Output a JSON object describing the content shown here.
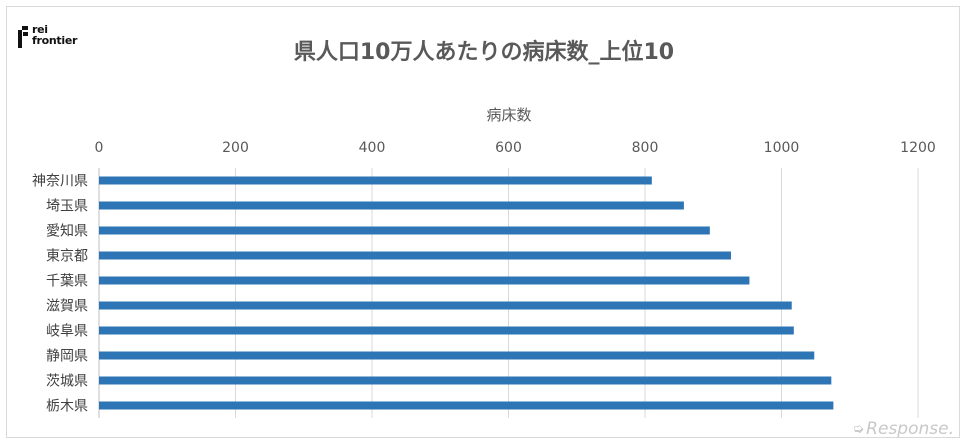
{
  "logo": {
    "line1": "rei",
    "line2": "frontier"
  },
  "watermark": "Response.",
  "chart_data": {
    "type": "bar",
    "orientation": "horizontal",
    "title": "県人口10万人あたりの病床数_上位10",
    "xlabel": "病床数",
    "ylabel": "",
    "xlim": [
      0,
      1200
    ],
    "xticks": [
      0,
      200,
      400,
      600,
      800,
      1000,
      1200
    ],
    "x_axis_position": "top",
    "grid": "vertical",
    "categories": [
      "神奈川県",
      "埼玉県",
      "愛知県",
      "東京都",
      "千葉県",
      "滋賀県",
      "岐阜県",
      "静岡県",
      "茨城県",
      "栃木県"
    ],
    "values": [
      810,
      857,
      895,
      926,
      953,
      1015,
      1018,
      1048,
      1073,
      1076
    ],
    "bar_color": "#2e75b6"
  }
}
